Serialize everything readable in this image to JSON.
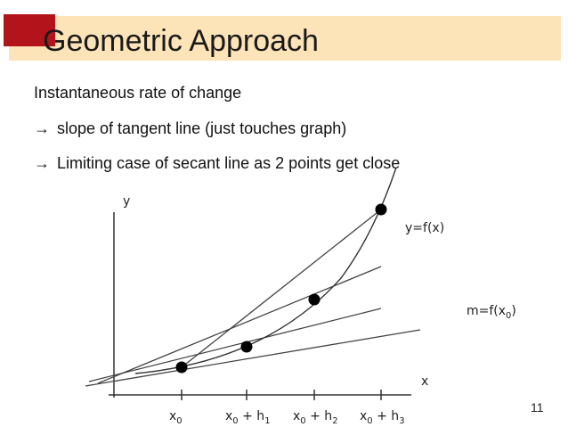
{
  "slide": {
    "title": "Geometric Approach",
    "bullets": [
      {
        "arrow": "",
        "text": "Instantaneous rate of change"
      },
      {
        "arrow": "→",
        "text": "slope of tangent line (just touches graph)"
      },
      {
        "arrow": "→",
        "text": "Limiting case of secant line as 2 points get close"
      }
    ],
    "page_number": "11"
  },
  "diagram": {
    "y_axis_label": "y",
    "x_axis_label": "x",
    "curve_label": "y=f(x)",
    "tangent_label": "m=f(x",
    "tangent_label_sub": "0",
    "tangent_label_close": ")",
    "ticks": [
      {
        "base": "x",
        "sub0": "0",
        "rest": "",
        "sub": ""
      },
      {
        "base": "x",
        "sub0": "0",
        "rest": " + h",
        "sub": "1"
      },
      {
        "base": "x",
        "sub0": "0",
        "rest": " + h",
        "sub": "2"
      },
      {
        "base": "x",
        "sub0": "0",
        "rest": " + h",
        "sub": "3"
      }
    ]
  },
  "colors": {
    "title_band": "#fde3b8",
    "accent": "#b3141c"
  }
}
